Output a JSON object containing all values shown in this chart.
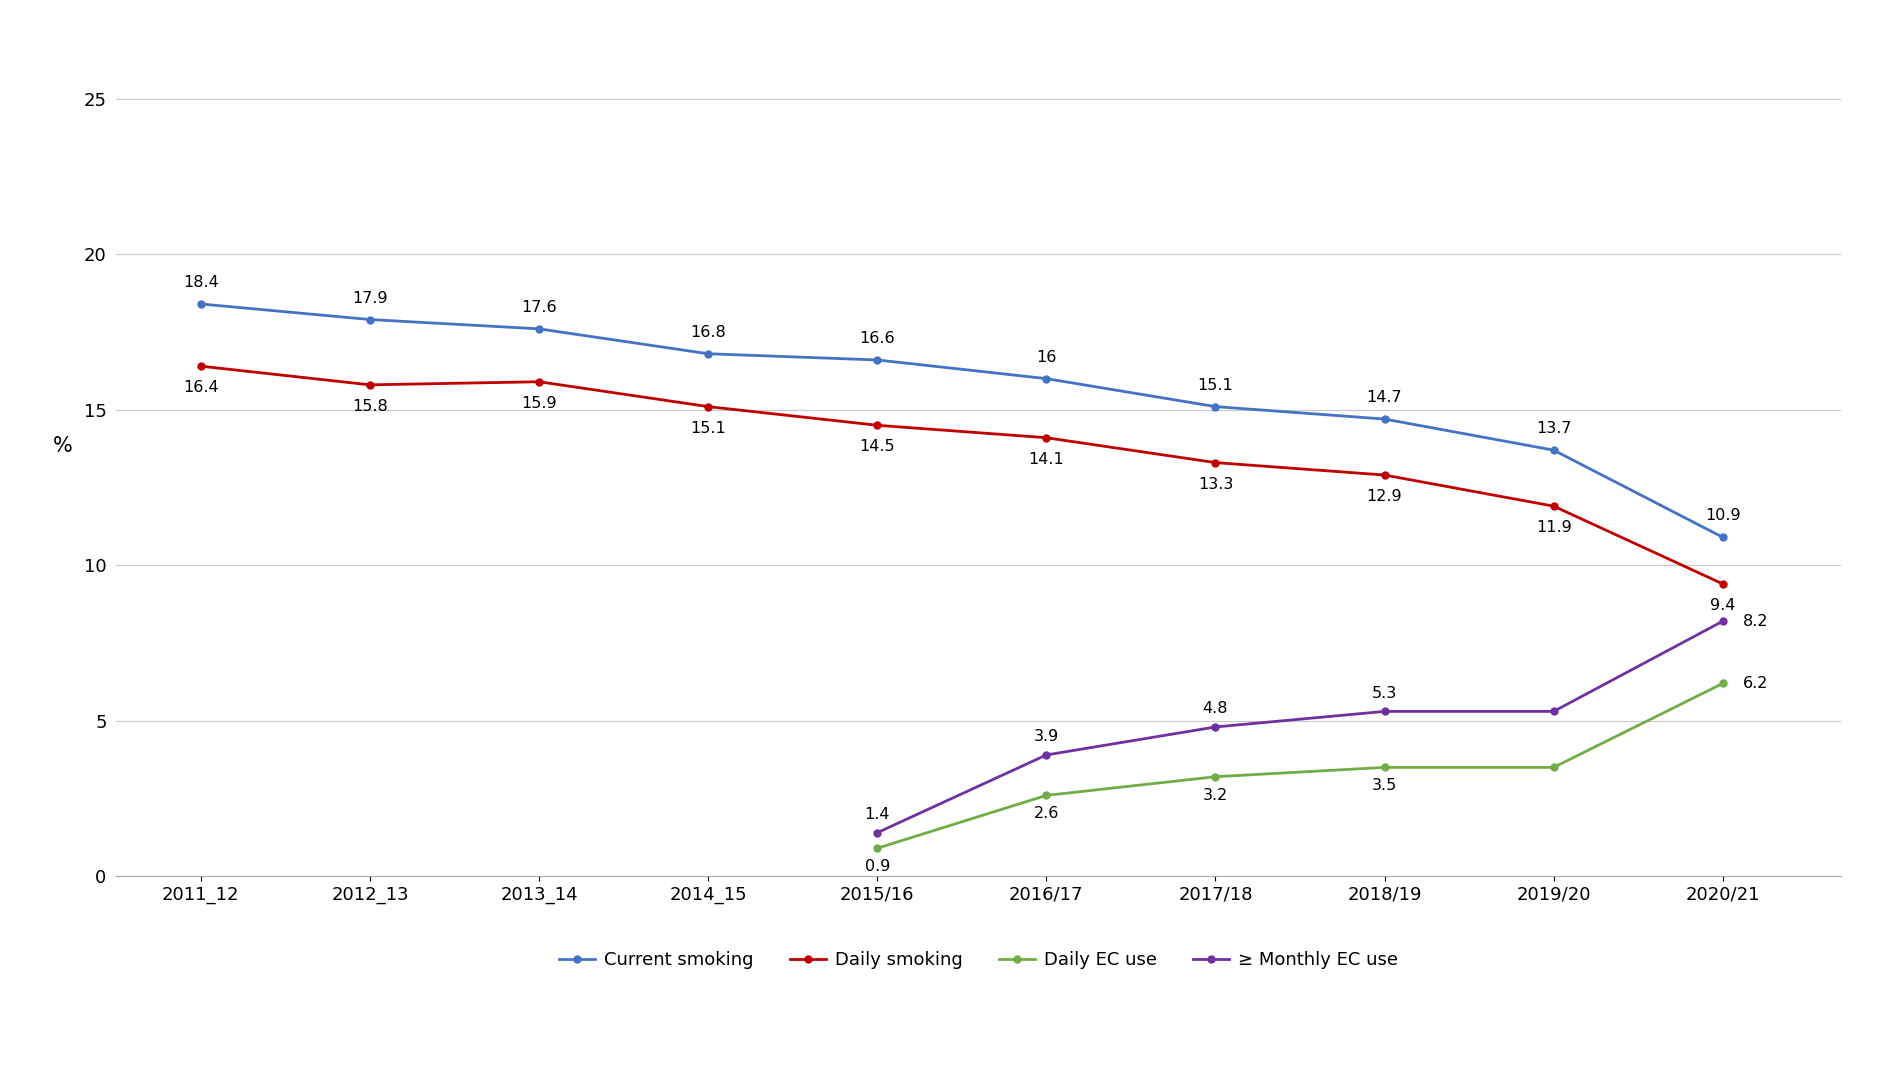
{
  "x_labels": [
    "2011_12",
    "2012_13",
    "2013_14",
    "2014_15",
    "2015/16",
    "2016/17",
    "2017/18",
    "2018/19",
    "2019/20",
    "2020/21"
  ],
  "current_smoking": [
    18.4,
    17.9,
    17.6,
    16.8,
    16.6,
    16.0,
    15.1,
    14.7,
    13.7,
    10.9
  ],
  "daily_smoking": [
    16.4,
    15.8,
    15.9,
    15.1,
    14.5,
    14.1,
    13.3,
    12.9,
    11.9,
    9.4
  ],
  "daily_ec": [
    null,
    null,
    null,
    null,
    0.9,
    2.6,
    3.2,
    3.5,
    3.5,
    6.2
  ],
  "monthly_ec": [
    null,
    null,
    null,
    null,
    1.4,
    3.9,
    4.8,
    5.3,
    5.3,
    8.2
  ],
  "color_current": "#4472C4",
  "color_daily": "#C00000",
  "color_daily_ec": "#70AD47",
  "color_monthly": "#7030A0",
  "ylabel": "%",
  "ylim": [
    0,
    27
  ],
  "yticks": [
    0,
    5,
    10,
    15,
    20,
    25
  ],
  "legend_labels": [
    "Current smoking",
    "Daily smoking",
    "Daily EC use",
    "≥ Monthly EC use"
  ],
  "background_color": "#ffffff",
  "grid_color": "#c8c8c8"
}
